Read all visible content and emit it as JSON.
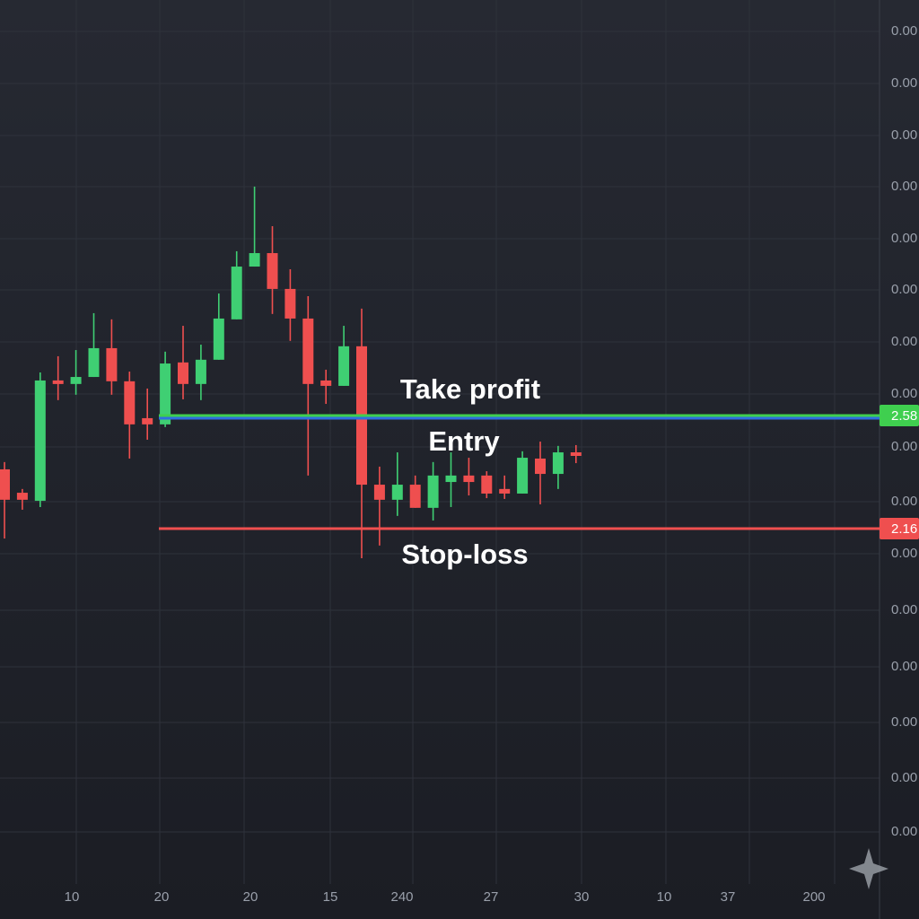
{
  "chart_data": {
    "type": "candlestick",
    "ylim": [
      0.84,
      4.123
    ],
    "y_axis_labels": [
      "0.00",
      "0.00",
      "0.00",
      "0.00",
      "0.00",
      "0.00",
      "0.00",
      "0.00",
      "0.00",
      "0.00",
      "0.00",
      "0.00",
      "0.00",
      "0.00",
      "0.00",
      "0.00"
    ],
    "x_axis_labels": [
      "10",
      "20",
      "20",
      "15",
      "240",
      "27",
      "30",
      "10",
      "37",
      "200"
    ],
    "up_color": "#3fcf73",
    "down_color": "#ef4f4f",
    "open": [
      2.38,
      2.293,
      2.263,
      2.71,
      2.697,
      2.723,
      2.83,
      2.707,
      2.57,
      2.547,
      2.777,
      2.697,
      2.787,
      2.937,
      3.133,
      3.183,
      3.05,
      2.94,
      2.71,
      2.69,
      2.837,
      2.323,
      2.267,
      2.323,
      2.237,
      2.333,
      2.357,
      2.357,
      2.307,
      2.29,
      2.42,
      2.363,
      2.443
    ],
    "high": [
      2.407,
      2.307,
      2.74,
      2.8,
      2.823,
      2.96,
      2.937,
      2.743,
      2.68,
      2.817,
      2.913,
      2.843,
      3.033,
      3.19,
      3.43,
      3.283,
      3.123,
      3.023,
      2.75,
      2.913,
      2.977,
      2.39,
      2.443,
      2.357,
      2.407,
      2.443,
      2.423,
      2.373,
      2.357,
      2.447,
      2.483,
      2.467,
      2.47
    ],
    "low": [
      2.123,
      2.23,
      2.24,
      2.637,
      2.657,
      2.723,
      2.657,
      2.42,
      2.49,
      2.537,
      2.64,
      2.637,
      2.787,
      2.937,
      3.133,
      2.957,
      2.857,
      2.357,
      2.623,
      2.69,
      2.05,
      2.097,
      2.207,
      2.237,
      2.19,
      2.24,
      2.283,
      2.273,
      2.27,
      2.29,
      2.25,
      2.307,
      2.403
    ],
    "close": [
      2.267,
      2.267,
      2.71,
      2.697,
      2.723,
      2.83,
      2.707,
      2.547,
      2.547,
      2.773,
      2.697,
      2.787,
      2.94,
      3.133,
      3.183,
      3.05,
      2.94,
      2.697,
      2.69,
      2.837,
      2.323,
      2.267,
      2.323,
      2.237,
      2.357,
      2.357,
      2.333,
      2.29,
      2.29,
      2.423,
      2.363,
      2.443,
      2.43
    ],
    "levels": [
      {
        "name": "Take profit",
        "value": 2.58,
        "label": "2.58",
        "color": "#3fcf4f"
      },
      {
        "name": "Entry",
        "value": 2.57,
        "color": "#2f6fe0"
      },
      {
        "name": "Stop-loss",
        "value": 2.16,
        "label": "2.16",
        "color": "#ef4f4f"
      }
    ]
  }
}
